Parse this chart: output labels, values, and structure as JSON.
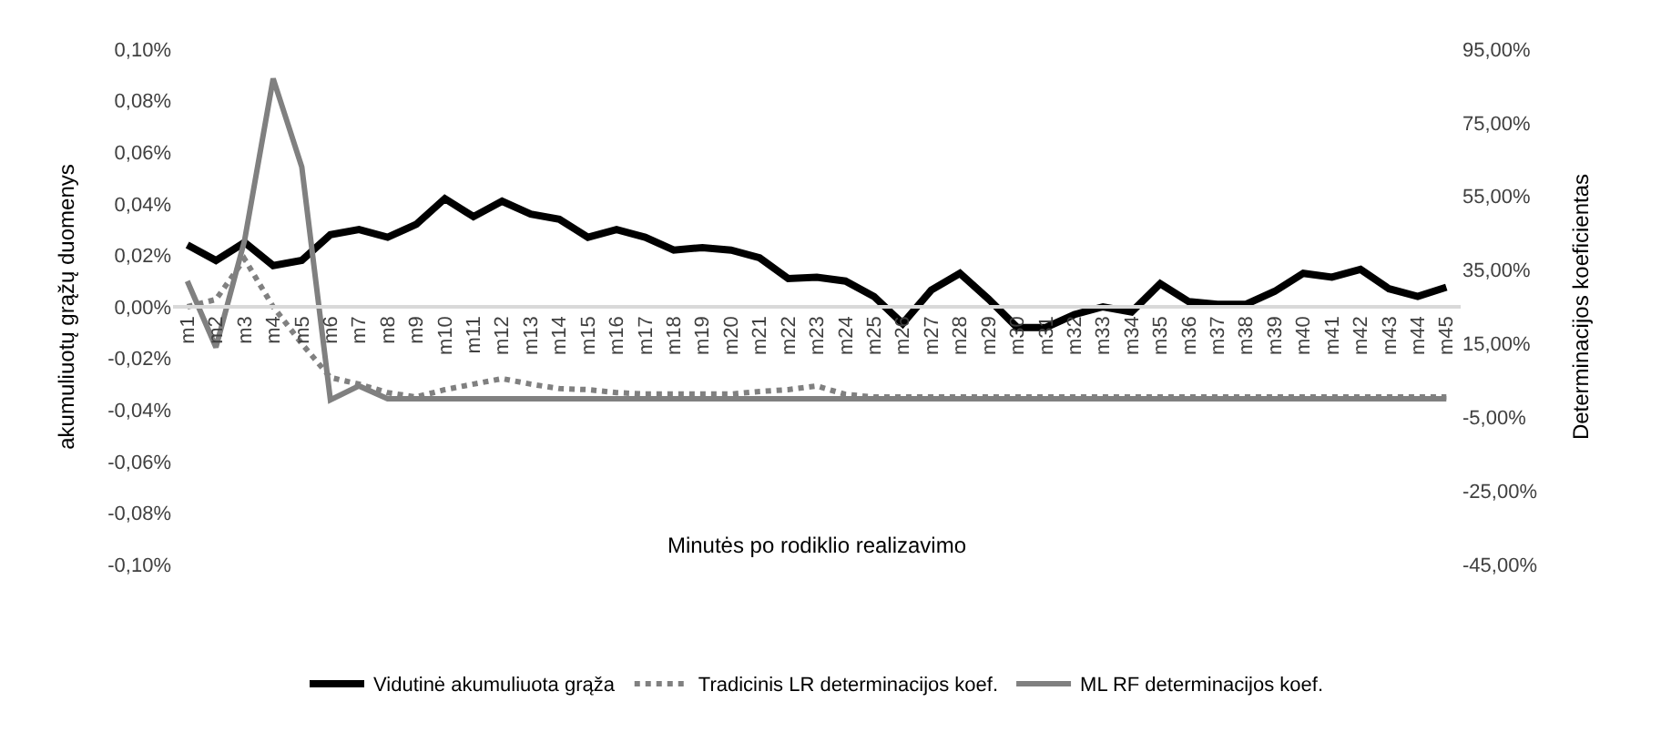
{
  "chart_data": {
    "type": "line",
    "xlabel": "Minutės po rodiklio realizavimo",
    "ylabel": "akumuliuotų grąžų duomenys",
    "y2label": "Determinacijos koeficientas",
    "categories": [
      "m1",
      "m2",
      "m3",
      "m4",
      "m5",
      "m6",
      "m7",
      "m8",
      "m9",
      "m10",
      "m11",
      "m12",
      "m13",
      "m14",
      "m15",
      "m16",
      "m17",
      "m18",
      "m19",
      "m20",
      "m21",
      "m22",
      "m23",
      "m24",
      "m25",
      "m26",
      "m27",
      "m28",
      "m29",
      "m30",
      "m31",
      "m32",
      "m33",
      "m34",
      "m35",
      "m36",
      "m37",
      "m38",
      "m39",
      "m40",
      "m41",
      "m42",
      "m43",
      "m44",
      "m45"
    ],
    "series": [
      {
        "name": "Vidutinė akumuliuota grąža",
        "color": "#000000",
        "line_style": "solid",
        "values": [
          0.024,
          0.018,
          0.025,
          0.016,
          0.018,
          0.028,
          0.03,
          0.027,
          0.032,
          0.042,
          0.035,
          0.041,
          0.036,
          0.034,
          0.027,
          0.03,
          0.027,
          0.022,
          0.023,
          0.022,
          0.019,
          0.011,
          0.0115,
          0.01,
          0.004,
          -0.0065,
          0.0065,
          0.013,
          0.003,
          -0.008,
          -0.008,
          -0.003,
          0.0,
          -0.002,
          0.009,
          0.002,
          0.001,
          0.001,
          0.006,
          0.013,
          0.0115,
          0.0145,
          0.007,
          0.004,
          0.0076
        ]
      },
      {
        "name": "Tradicinis LR determinacijos koef.",
        "color": "#808080",
        "line_style": "dotted",
        "axis": "y2",
        "values": [
          25,
          27,
          38,
          25,
          15,
          5.8,
          4,
          1.7,
          0.5,
          2.5,
          4,
          5.5,
          4,
          2.8,
          2.5,
          1.7,
          1.3,
          1.3,
          1.3,
          1.3,
          2,
          2.5,
          3.5,
          1.2,
          0.5,
          0.5,
          0.5,
          0.5,
          0.5,
          0.5,
          0.5,
          0.5,
          0.5,
          0.5,
          0.5,
          0.5,
          0.5,
          0.5,
          0.5,
          0.5,
          0.5,
          0.5,
          0.5,
          0.5,
          0.5
        ]
      },
      {
        "name": "ML RF determinacijos koef.",
        "color": "#808080",
        "line_style": "solid",
        "axis": "y2",
        "values": [
          32,
          14,
          43,
          87,
          63,
          -0.3,
          3.5,
          0,
          0,
          0,
          0,
          0,
          0,
          0,
          0,
          0,
          0,
          0,
          0,
          0,
          0,
          0,
          0,
          0,
          0,
          0,
          0,
          0,
          0,
          0,
          0,
          0,
          0,
          0,
          0,
          0,
          0,
          0,
          0,
          0,
          0,
          0,
          0,
          0,
          0
        ]
      }
    ],
    "ylim": [
      -0.1,
      0.1
    ],
    "yticks": [
      {
        "value": 0.1,
        "label": "0,10%"
      },
      {
        "value": 0.08,
        "label": "0,08%"
      },
      {
        "value": 0.06,
        "label": "0,06%"
      },
      {
        "value": 0.04,
        "label": "0,04%"
      },
      {
        "value": 0.02,
        "label": "0,02%"
      },
      {
        "value": 0,
        "label": "0,00%"
      },
      {
        "value": -0.02,
        "label": "-0,02%"
      },
      {
        "value": -0.04,
        "label": "-0,04%"
      },
      {
        "value": -0.06,
        "label": "-0,06%"
      },
      {
        "value": -0.08,
        "label": "-0,08%"
      },
      {
        "value": -0.1,
        "label": "-0,10%"
      }
    ],
    "y2lim": [
      -45,
      95
    ],
    "y2ticks": [
      {
        "value": 95,
        "label": "95,00%"
      },
      {
        "value": 75,
        "label": "75,00%"
      },
      {
        "value": 55,
        "label": "55,00%"
      },
      {
        "value": 35,
        "label": "35,00%"
      },
      {
        "value": 15,
        "label": "15,00%"
      },
      {
        "value": -5,
        "label": "-5,00%"
      },
      {
        "value": -25,
        "label": "-25,00%"
      },
      {
        "value": -45,
        "label": "-45,00%"
      }
    ],
    "legend": "bottom",
    "marker": "none"
  }
}
